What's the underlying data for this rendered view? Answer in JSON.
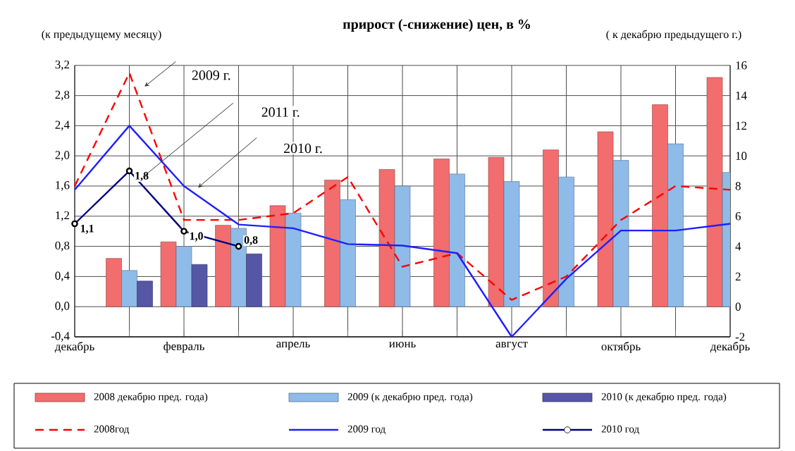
{
  "chart_data": {
    "type": "bar",
    "title": "прирост (-снижение) цен, в %",
    "ylabel": "(к предыдущему месяцу)",
    "y2label": "( к декабрю предыдущего г.)",
    "categories": [
      "декабрь",
      null,
      "февраль",
      null,
      "апрель",
      null,
      "июнь",
      null,
      "август",
      null,
      "октябрь",
      null,
      "декабрь"
    ],
    "series": [
      {
        "name": "2008   декабрю пред. года)",
        "axis": "y2",
        "color": "#f26d6d",
        "values": [
          null,
          3.2,
          4.3,
          5.4,
          6.7,
          8.4,
          9.1,
          9.8,
          9.9,
          10.4,
          11.6,
          13.4,
          15.2
        ]
      },
      {
        "name": "2009 (к декабрю пред. года)",
        "axis": "y2",
        "color": "#8fbbe8",
        "values": [
          null,
          2.4,
          4.0,
          5.2,
          6.2,
          7.1,
          8.0,
          8.8,
          8.3,
          8.6,
          9.7,
          10.8,
          8.9
        ]
      },
      {
        "name": "2010 (к декабрю пред. года)",
        "axis": "y2",
        "color": "#5656a6",
        "values": [
          null,
          1.7,
          2.8,
          3.5,
          null,
          null,
          null,
          null,
          null,
          null,
          null,
          null,
          null
        ]
      },
      {
        "name": "2008год",
        "type": "line",
        "color": "#ff0000",
        "line_style": "dashed",
        "values": [
          1.6,
          3.1,
          1.15,
          1.15,
          1.24,
          1.72,
          0.53,
          0.71,
          0.09,
          0.4,
          1.15,
          1.6,
          1.55
        ]
      },
      {
        "name": "2009 год",
        "type": "line",
        "color": "#1f1fff",
        "values": [
          1.55,
          2.4,
          1.6,
          1.09,
          1.04,
          0.83,
          0.81,
          0.71,
          -0.4,
          0.37,
          1.01,
          1.01,
          1.1
        ]
      },
      {
        "name": "2010 год",
        "type": "line",
        "color": "#000080",
        "marker": "circle",
        "values": [
          1.1,
          1.8,
          1.0,
          0.8,
          null,
          null,
          null,
          null,
          null,
          null,
          null,
          null,
          null
        ],
        "value_labels": [
          "1,1",
          "1,8",
          "1,0",
          "0,8",
          null,
          null,
          null,
          null,
          null,
          null,
          null,
          null,
          null
        ]
      }
    ],
    "ylim": [
      -0.4,
      3.2
    ],
    "yticks": [
      {
        "value": -0.4,
        "label": "-0,4"
      },
      {
        "value": 0,
        "label": "0,0"
      },
      {
        "value": 0.4,
        "label": "0,4"
      },
      {
        "value": 0.8,
        "label": "0,8"
      },
      {
        "value": 1.2,
        "label": "1,2"
      },
      {
        "value": 1.6,
        "label": "1,6"
      },
      {
        "value": 2.0,
        "label": "2,0"
      },
      {
        "value": 2.4,
        "label": "2,4"
      },
      {
        "value": 2.8,
        "label": "2,8"
      },
      {
        "value": 3.2,
        "label": "3,2"
      }
    ],
    "y2lim": [
      -2,
      16
    ],
    "y2ticks": [
      -2,
      0,
      2,
      4,
      6,
      8,
      10,
      12,
      14,
      16
    ],
    "grid": true,
    "legend": "bottom",
    "annotations": [
      "2009 г.",
      "2011 г.",
      "2010 г."
    ]
  }
}
